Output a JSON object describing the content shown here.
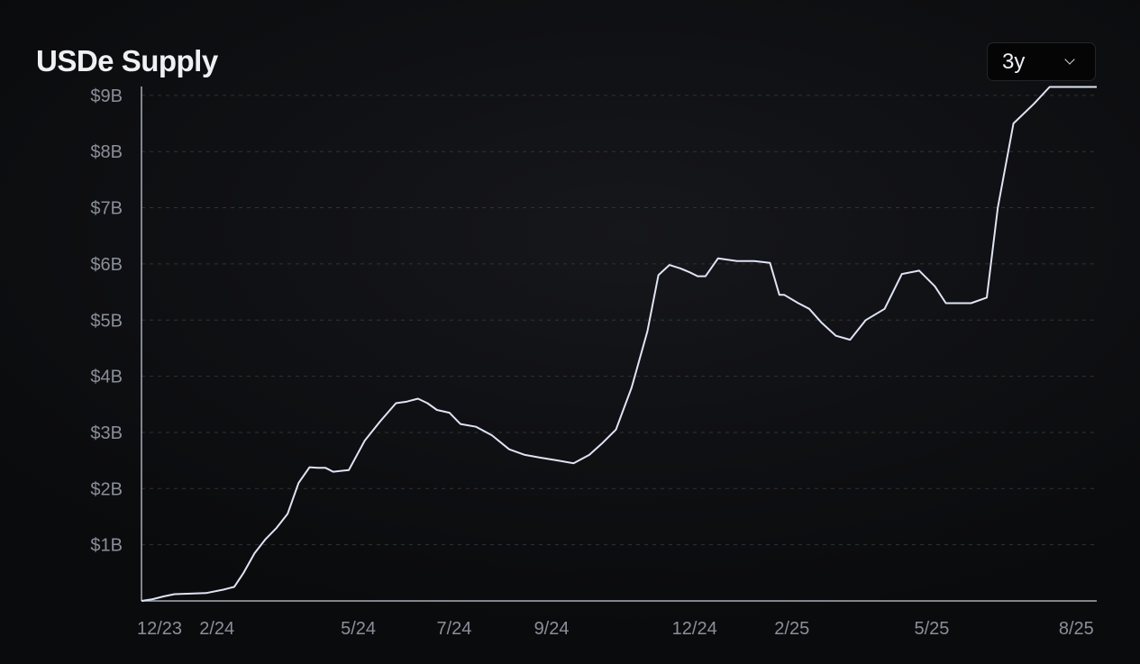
{
  "header": {
    "title": "USDe Supply",
    "range_select": {
      "value": "3y",
      "icon": "chevron-down-icon"
    }
  },
  "colors": {
    "background": "#0d0e11",
    "line": "#dfe4f5",
    "axis": "#a9adb8",
    "grid": "#2f3238",
    "tick_text": "#8a8f99"
  },
  "chart_data": {
    "type": "line",
    "title": "USDe Supply",
    "xlabel": "",
    "ylabel": "",
    "x_ticks": [
      "12/23",
      "2/24",
      "5/24",
      "7/24",
      "9/24",
      "12/24",
      "2/25",
      "5/25",
      "8/25"
    ],
    "y_ticks": [
      "$1B",
      "$2B",
      "$3B",
      "$4B",
      "$5B",
      "$6B",
      "$7B",
      "$8B",
      "$9B"
    ],
    "ylim": [
      0,
      9.2
    ],
    "y_unit": "$B",
    "grid": "horizontal dashed",
    "series": [
      {
        "x": [
          "2023-12-15",
          "2023-12-22",
          "2023-12-29",
          "2024-01-05",
          "2024-01-15",
          "2024-01-25",
          "2024-02-05",
          "2024-02-12",
          "2024-02-18",
          "2024-02-25",
          "2024-03-03",
          "2024-03-10",
          "2024-03-17",
          "2024-03-24",
          "2024-03-31",
          "2024-04-05",
          "2024-04-10",
          "2024-04-15",
          "2024-04-25",
          "2024-05-05",
          "2024-05-15",
          "2024-05-25",
          "2024-06-01",
          "2024-06-08",
          "2024-06-14",
          "2024-06-20",
          "2024-06-28",
          "2024-07-05",
          "2024-07-15",
          "2024-07-25",
          "2024-08-05",
          "2024-08-15",
          "2024-08-25",
          "2024-09-05",
          "2024-09-15",
          "2024-09-25",
          "2024-10-03",
          "2024-10-12",
          "2024-10-22",
          "2024-11-01",
          "2024-11-08",
          "2024-11-15",
          "2024-11-22",
          "2024-11-28",
          "2024-12-03",
          "2024-12-08",
          "2024-12-16",
          "2024-12-28",
          "2025-01-08",
          "2025-01-18",
          "2025-01-24",
          "2025-01-27",
          "2025-02-05",
          "2025-02-12",
          "2025-02-20",
          "2025-03-01",
          "2025-03-10",
          "2025-03-20",
          "2025-04-01",
          "2025-04-12",
          "2025-04-23",
          "2025-05-03",
          "2025-05-10",
          "2025-05-18",
          "2025-05-26",
          "2025-06-05",
          "2025-06-12",
          "2025-06-22",
          "2025-07-05",
          "2025-07-15",
          "2025-07-22",
          "2025-07-30",
          "2025-08-05",
          "2025-08-10",
          "2025-08-14"
        ],
        "values": [
          0.0,
          0.03,
          0.08,
          0.12,
          0.13,
          0.14,
          0.2,
          0.25,
          0.5,
          0.85,
          1.1,
          1.3,
          1.55,
          2.1,
          2.38,
          2.37,
          2.37,
          2.3,
          2.33,
          2.85,
          3.2,
          3.52,
          3.55,
          3.6,
          3.52,
          3.4,
          3.35,
          3.15,
          3.1,
          2.95,
          2.7,
          2.6,
          2.55,
          2.5,
          2.45,
          2.6,
          2.8,
          3.05,
          3.8,
          4.8,
          5.8,
          5.98,
          5.92,
          5.85,
          5.78,
          5.78,
          6.1,
          6.05,
          6.05,
          6.02,
          5.45,
          5.45,
          5.3,
          5.2,
          4.95,
          4.72,
          4.65,
          5.0,
          5.2,
          5.82,
          5.88,
          5.6,
          5.3,
          5.3,
          5.3,
          5.4,
          7.0,
          8.5,
          8.85,
          9.15,
          9.15,
          9.15,
          9.15,
          9.15,
          9.15
        ]
      }
    ]
  }
}
